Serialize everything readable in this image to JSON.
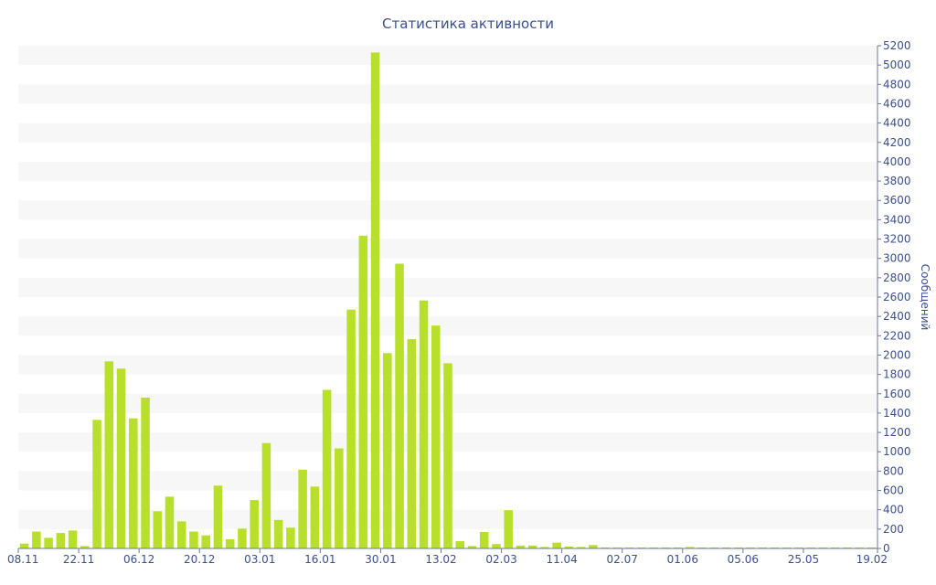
{
  "chart_data": {
    "type": "bar",
    "title": "Статистика активности",
    "xlabel": "",
    "ylabel": "Сообщений",
    "ylim": [
      0,
      5200
    ],
    "ytick_step": 200,
    "grid": "alternating horizontal bands",
    "y_axis_side": "right",
    "bar_color": "#b8e02a",
    "x_tick_labels": [
      "08.11",
      "22.11",
      "06.12",
      "20.12",
      "03.01",
      "16.01",
      "30.01",
      "13.02",
      "02.03",
      "11.04",
      "02.07",
      "01.06",
      "05.06",
      "25.05",
      "19.02"
    ],
    "values": [
      50,
      175,
      110,
      160,
      185,
      25,
      1330,
      1935,
      1860,
      1345,
      1560,
      385,
      535,
      280,
      175,
      135,
      650,
      95,
      205,
      500,
      1090,
      295,
      215,
      815,
      640,
      1640,
      1035,
      2470,
      3235,
      5130,
      2020,
      2945,
      2165,
      2565,
      2305,
      1915,
      75,
      25,
      170,
      45,
      395,
      30,
      30,
      15,
      60,
      20,
      15,
      35,
      10,
      10,
      10,
      10,
      10,
      10,
      10,
      15,
      10,
      10,
      10,
      10,
      10,
      10,
      10,
      10,
      10,
      10,
      10,
      10,
      10,
      10,
      10
    ]
  }
}
